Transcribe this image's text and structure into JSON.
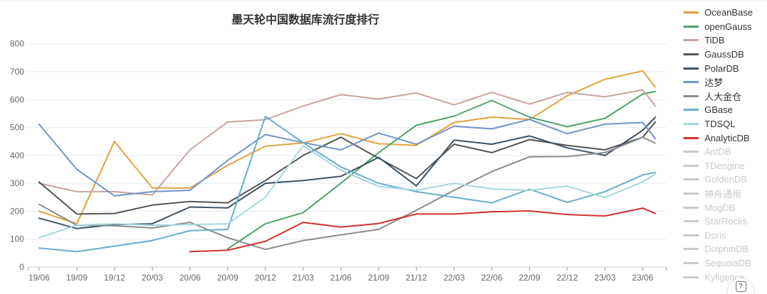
{
  "page": {
    "title": "墨天轮中国数据库流行度排行"
  },
  "help_button": {
    "glyph": "?"
  },
  "chart_data": {
    "type": "line",
    "title": "墨天轮中国数据库流行度排行",
    "grid": true,
    "legend_position": "right",
    "ylim": [
      0,
      800
    ],
    "y_ticks": [
      0,
      100,
      200,
      300,
      400,
      500,
      600,
      700,
      800
    ],
    "x_tick_labels": [
      "19/06",
      "19/09",
      "19/12",
      "20/03",
      "20/06",
      "20/09",
      "20/12",
      "21/03",
      "21/06",
      "21/09",
      "21/12",
      "22/03",
      "22/06",
      "22/09",
      "22/12",
      "23/03",
      "23/06"
    ],
    "x_tick_months": [
      0,
      3,
      6,
      9,
      12,
      15,
      18,
      21,
      24,
      27,
      30,
      33,
      36,
      39,
      42,
      45,
      48
    ],
    "x_months_since_start": [
      0,
      3,
      6,
      9,
      12,
      15,
      18,
      21,
      24,
      27,
      30,
      33,
      36,
      39,
      42,
      45,
      48,
      49
    ],
    "series": [
      {
        "name": "OceanBase",
        "color": "#E2A23D",
        "enabled": true,
        "values": [
          200,
          155,
          450,
          283,
          283,
          365,
          433,
          445,
          478,
          442,
          436,
          518,
          537,
          529,
          614,
          673,
          703,
          645
        ]
      },
      {
        "name": "openGauss",
        "color": "#4FA36B",
        "enabled": true,
        "values": [
          null,
          null,
          null,
          null,
          null,
          65,
          155,
          195,
          300,
          410,
          508,
          541,
          597,
          537,
          503,
          533,
          620,
          629
        ]
      },
      {
        "name": "TiDB",
        "color": "#C8A49C",
        "enabled": true,
        "values": [
          300,
          270,
          270,
          258,
          420,
          520,
          528,
          577,
          618,
          602,
          624,
          581,
          626,
          584,
          626,
          610,
          635,
          577
        ]
      },
      {
        "name": "GaussDB",
        "color": "#555555",
        "enabled": true,
        "values": [
          305,
          190,
          192,
          222,
          235,
          230,
          310,
          400,
          465,
          390,
          317,
          440,
          410,
          457,
          436,
          420,
          465,
          520
        ]
      },
      {
        "name": "PolarDB",
        "color": "#3D5468",
        "enabled": true,
        "values": [
          175,
          138,
          152,
          155,
          215,
          212,
          300,
          310,
          325,
          393,
          291,
          455,
          440,
          470,
          427,
          400,
          490,
          537
        ]
      },
      {
        "name": "达梦",
        "color": "#7293CB",
        "enabled": true,
        "values": [
          512,
          350,
          255,
          270,
          275,
          382,
          475,
          446,
          420,
          480,
          440,
          505,
          495,
          529,
          478,
          512,
          518,
          460
        ]
      },
      {
        "name": "人大金仓",
        "color": "#8C8C8C",
        "enabled": true,
        "values": [
          225,
          150,
          148,
          140,
          160,
          105,
          63,
          95,
          115,
          135,
          203,
          275,
          342,
          395,
          396,
          410,
          465,
          444
        ]
      },
      {
        "name": "GBase",
        "color": "#68AEC8",
        "enabled": true,
        "values": [
          68,
          55,
          75,
          95,
          130,
          135,
          540,
          445,
          359,
          300,
          270,
          250,
          230,
          279,
          232,
          270,
          330,
          339
        ]
      },
      {
        "name": "TDSQL",
        "color": "#A6D7DC",
        "enabled": true,
        "values": [
          105,
          150,
          155,
          150,
          152,
          155,
          250,
          435,
          347,
          289,
          275,
          300,
          280,
          275,
          290,
          249,
          305,
          333
        ]
      },
      {
        "name": "AnalyticDB",
        "color": "#D43030",
        "enabled": true,
        "values": [
          null,
          null,
          null,
          null,
          55,
          60,
          92,
          160,
          143,
          156,
          190,
          190,
          198,
          201,
          188,
          183,
          211,
          192
        ]
      },
      {
        "name": "AntDB",
        "color": "#C9C9C9",
        "enabled": false,
        "values": []
      },
      {
        "name": "TDengine",
        "color": "#C9C9C9",
        "enabled": false,
        "values": []
      },
      {
        "name": "GoldenDB",
        "color": "#C9C9C9",
        "enabled": false,
        "values": []
      },
      {
        "name": "神舟通用",
        "color": "#C9C9C9",
        "enabled": false,
        "values": []
      },
      {
        "name": "MogDB",
        "color": "#C9C9C9",
        "enabled": false,
        "values": []
      },
      {
        "name": "StarRocks",
        "color": "#C9C9C9",
        "enabled": false,
        "values": []
      },
      {
        "name": "Doris",
        "color": "#C9C9C9",
        "enabled": false,
        "values": []
      },
      {
        "name": "DolphinDB",
        "color": "#C9C9C9",
        "enabled": false,
        "values": []
      },
      {
        "name": "SequoiaDB",
        "color": "#C9C9C9",
        "enabled": false,
        "values": []
      },
      {
        "name": "Kyligence",
        "color": "#C9C9C9",
        "enabled": false,
        "values": []
      }
    ],
    "style": {
      "gridline_color": "#E4EBF4",
      "axis_line_color": "#C9CDD4",
      "tick_color": "#999999",
      "axis_label_color": "#666666"
    }
  }
}
